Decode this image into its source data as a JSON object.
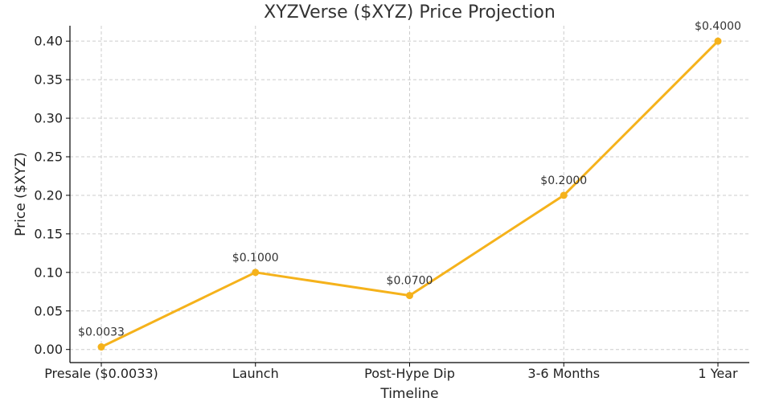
{
  "chart_data": {
    "type": "line",
    "title": "XYZVerse ($XYZ) Price Projection",
    "xlabel": "Timeline",
    "ylabel": "Price ($XYZ)",
    "categories": [
      "Presale ($0.0033)",
      "Launch",
      "Post-Hype Dip",
      "3-6 Months",
      "1 Year"
    ],
    "series": [
      {
        "values": [
          0.0033,
          0.1,
          0.07,
          0.2,
          0.4
        ],
        "labels": [
          "$0.0033",
          "$0.1000",
          "$0.0700",
          "$0.2000",
          "$0.4000"
        ],
        "color": "#f5b21b"
      }
    ],
    "yticks": [
      "0.00",
      "0.05",
      "0.10",
      "0.15",
      "0.20",
      "0.25",
      "0.30",
      "0.35",
      "0.40"
    ],
    "ytick_values": [
      0,
      0.05,
      0.1,
      0.15,
      0.2,
      0.25,
      0.3,
      0.35,
      0.4
    ],
    "ylim": [
      -0.017,
      0.42
    ],
    "grid": true
  }
}
